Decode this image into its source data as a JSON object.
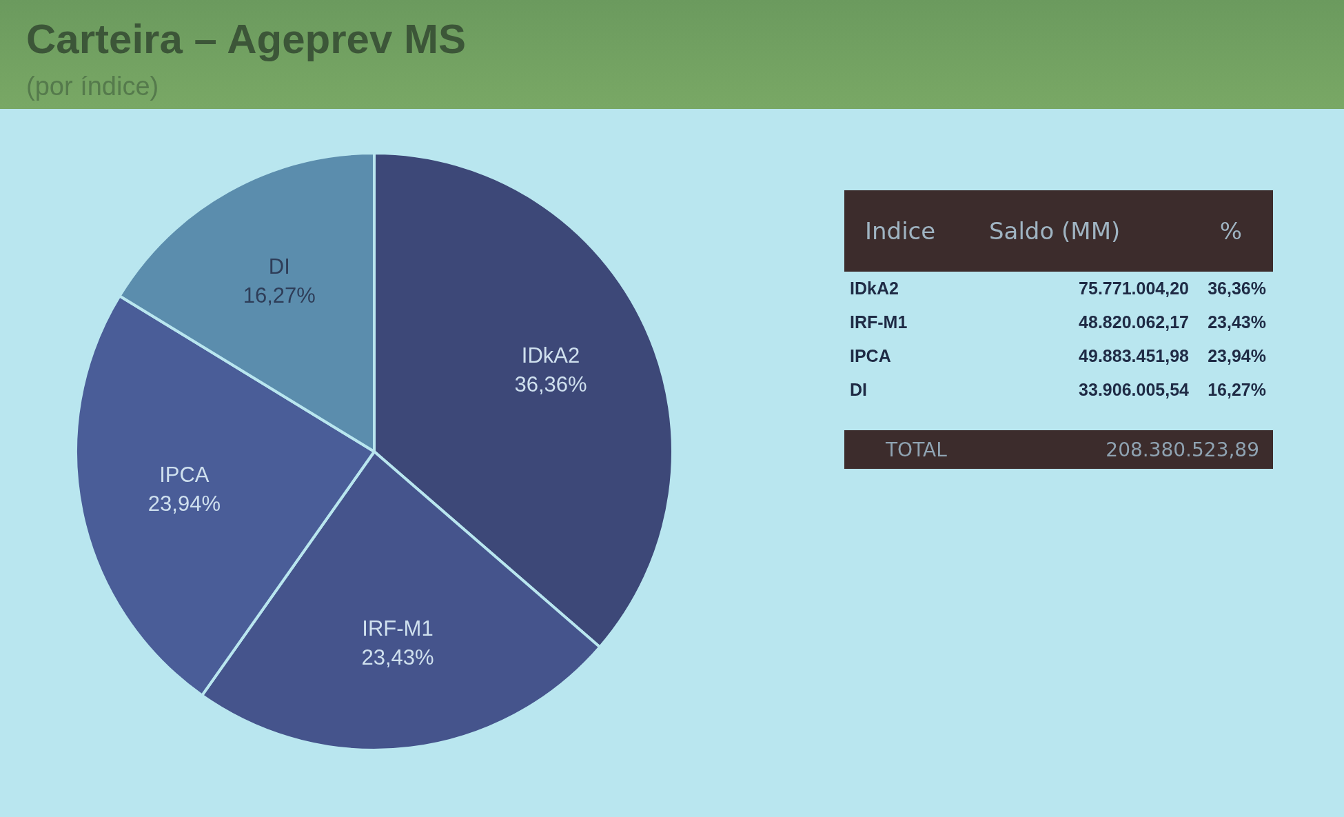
{
  "chart_data": [
    {
      "type": "pie",
      "title": "Carteira – Ageprev MS",
      "subtitle": "(por índice)",
      "categories": [
        "IDkA2",
        "IRF-M1",
        "IPCA",
        "DI"
      ],
      "values": [
        36.36,
        23.43,
        23.94,
        16.27
      ],
      "value_labels": [
        "36,36%",
        "23,43%",
        "23,94%",
        "16,27%"
      ],
      "colors": [
        "#3d4878",
        "#45548c",
        "#4a5d98",
        "#5b8dad"
      ]
    },
    {
      "type": "other",
      "categories": [
        "IDkA2",
        "IRF-M1",
        "IPCA",
        "DI"
      ],
      "series": [
        {
          "name": "Saldo (MM)",
          "values": [
            75771004.2,
            48820062.17,
            49883451.98,
            33906005.54
          ],
          "value_labels": [
            "75.771.004,20",
            "48.820.062,17",
            "49.883.451,98",
            "33.906.005,54"
          ]
        },
        {
          "name": "%",
          "values": [
            36.36,
            23.43,
            23.94,
            16.27
          ],
          "value_labels": [
            "36,36%",
            "23,43%",
            "23,94%",
            "16,27%"
          ]
        }
      ],
      "annotations": [
        "Indice",
        "TOTAL"
      ],
      "totals": [
        "208.380.523,89"
      ]
    }
  ]
}
